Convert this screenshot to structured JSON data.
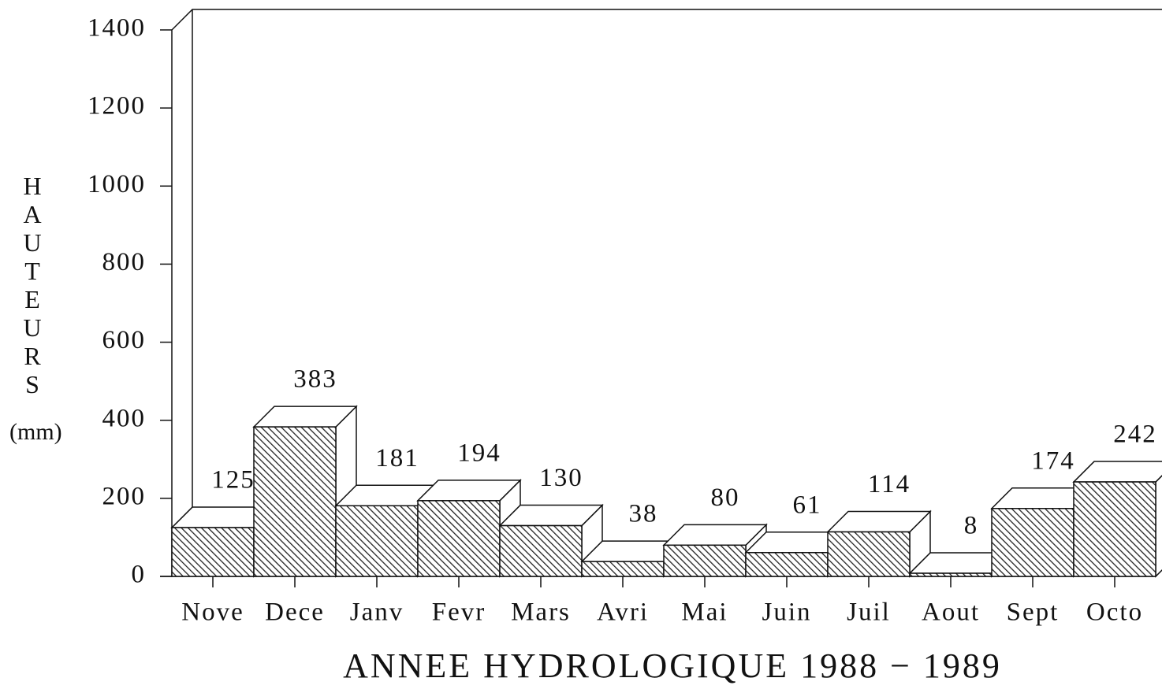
{
  "chart_data": {
    "type": "bar3d",
    "title": "ANNEE HYDROLOGIQUE 1988 − 1989",
    "y_label": "HAUTEURS",
    "y_unit": "(mm)",
    "categories": [
      "Nove",
      "Dece",
      "Janv",
      "Fevr",
      "Mars",
      "Avri",
      "Mai",
      "Juin",
      "Juil",
      "Aout",
      "Sept",
      "Octo"
    ],
    "values": [
      125,
      383,
      181,
      194,
      130,
      38,
      80,
      61,
      114,
      8,
      174,
      242
    ],
    "ylim": [
      0,
      1400
    ],
    "yticks": [
      0,
      200,
      400,
      600,
      800,
      1000,
      1200,
      1400
    ],
    "color": "hatched"
  }
}
